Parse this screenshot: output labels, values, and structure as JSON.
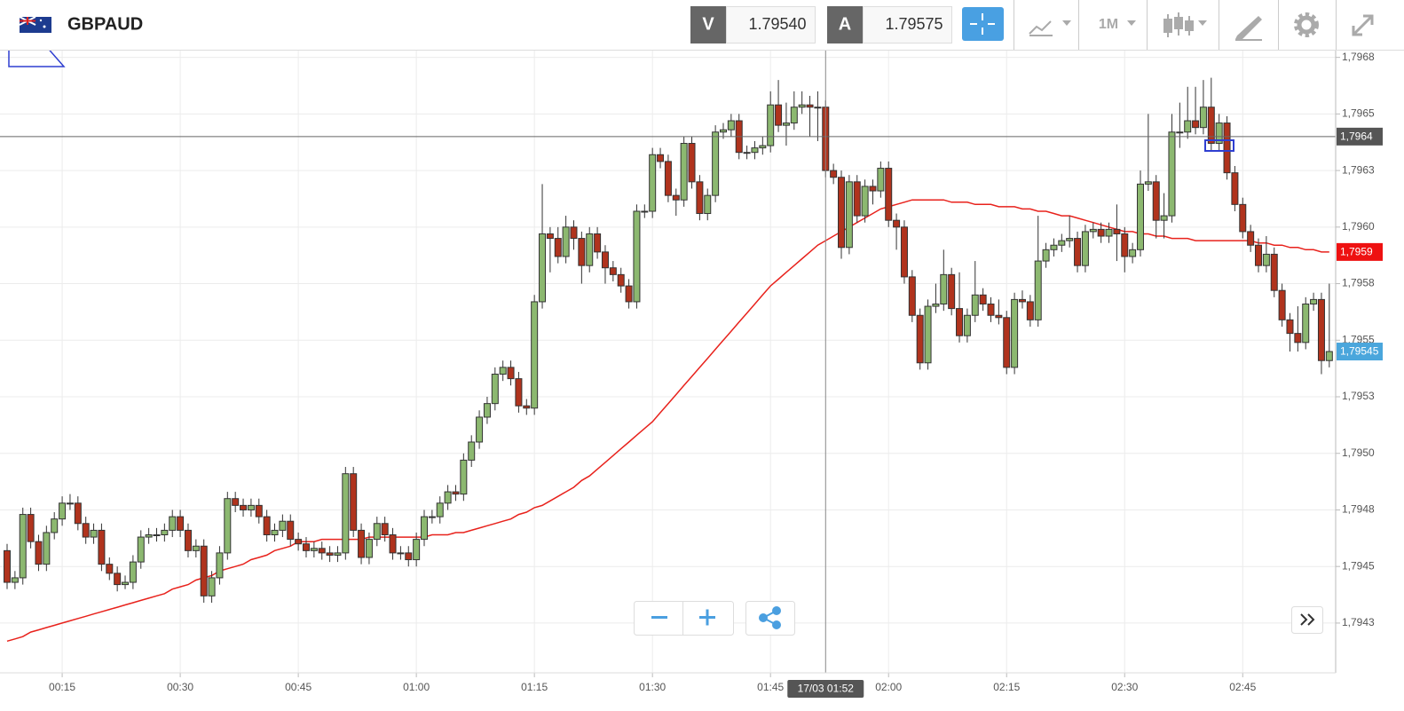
{
  "toolbar": {
    "symbol": "GBPAUD",
    "sell_label": "V",
    "sell": "1.79540",
    "buy_label": "A",
    "buy": "1.79575",
    "timeframe": "1M"
  },
  "chart_data": {
    "type": "candlestick",
    "up_color": "#8cb870",
    "down_color": "#b0331d",
    "grid": true,
    "ylim": [
      1.79403,
      1.79678
    ],
    "yticks": [
      {
        "value": 1.79675,
        "label": "1,7968"
      },
      {
        "value": 1.7965,
        "label": "1,7965"
      },
      {
        "value": 1.79625,
        "label": "1,7963"
      },
      {
        "value": 1.796,
        "label": "1,7960"
      },
      {
        "value": 1.79575,
        "label": "1,7958"
      },
      {
        "value": 1.7955,
        "label": "1,7955"
      },
      {
        "value": 1.79525,
        "label": "1,7953"
      },
      {
        "value": 1.795,
        "label": "1,7950"
      },
      {
        "value": 1.79475,
        "label": "1,7948"
      },
      {
        "value": 1.7945,
        "label": "1,7945"
      },
      {
        "value": 1.79425,
        "label": "1,7943"
      }
    ],
    "xticks": [
      "00:15",
      "00:30",
      "00:45",
      "01:00",
      "01:15",
      "01:30",
      "01:45",
      "02:00",
      "02:15",
      "02:30",
      "02:45"
    ],
    "x": [
      "00:08",
      "00:09",
      "00:10",
      "00:11",
      "00:12",
      "00:13",
      "00:14",
      "00:15",
      "00:16",
      "00:17",
      "00:18",
      "00:19",
      "00:20",
      "00:21",
      "00:22",
      "00:23",
      "00:24",
      "00:25",
      "00:26",
      "00:27",
      "00:28",
      "00:29",
      "00:30",
      "00:31",
      "00:32",
      "00:33",
      "00:34",
      "00:35",
      "00:36",
      "00:37",
      "00:38",
      "00:39",
      "00:40",
      "00:41",
      "00:42",
      "00:43",
      "00:44",
      "00:45",
      "00:46",
      "00:47",
      "00:48",
      "00:49",
      "00:50",
      "00:51",
      "00:52",
      "00:53",
      "00:54",
      "00:55",
      "00:56",
      "00:57",
      "00:58",
      "00:59",
      "01:00",
      "01:01",
      "01:02",
      "01:03",
      "01:04",
      "01:05",
      "01:06",
      "01:07",
      "01:08",
      "01:09",
      "01:10",
      "01:11",
      "01:12",
      "01:13",
      "01:14",
      "01:15",
      "01:16",
      "01:17",
      "01:18",
      "01:19",
      "01:20",
      "01:21",
      "01:22",
      "01:23",
      "01:24",
      "01:25",
      "01:26",
      "01:27",
      "01:28",
      "01:29",
      "01:30",
      "01:31",
      "01:32",
      "01:33",
      "01:34",
      "01:35",
      "01:36",
      "01:37",
      "01:38",
      "01:39",
      "01:40",
      "01:41",
      "01:42",
      "01:43",
      "01:44",
      "01:45",
      "01:46",
      "01:47",
      "01:48",
      "01:49",
      "01:50",
      "01:51",
      "01:52",
      "01:53",
      "01:54",
      "01:55",
      "01:56",
      "01:57",
      "01:58",
      "01:59",
      "02:00",
      "02:01",
      "02:02",
      "02:03",
      "02:04",
      "02:05",
      "02:06",
      "02:07",
      "02:08",
      "02:09",
      "02:10",
      "02:11",
      "02:12",
      "02:13",
      "02:14",
      "02:15",
      "02:16",
      "02:17",
      "02:18",
      "02:19",
      "02:20",
      "02:21",
      "02:22",
      "02:23",
      "02:24",
      "02:25",
      "02:26",
      "02:27",
      "02:28",
      "02:29",
      "02:30",
      "02:31",
      "02:32",
      "02:33",
      "02:34",
      "02:35",
      "02:36",
      "02:37",
      "02:38",
      "02:39",
      "02:40",
      "02:41",
      "02:42",
      "02:43",
      "02:44",
      "02:45",
      "02:46",
      "02:47",
      "02:48",
      "02:49",
      "02:50",
      "02:51",
      "02:52",
      "02:53",
      "02:54",
      "02:55",
      "02:56"
    ],
    "open": [
      1.79457,
      1.79443,
      1.79445,
      1.79473,
      1.79461,
      1.79451,
      1.79465,
      1.79471,
      1.79478,
      1.79478,
      1.79469,
      1.79463,
      1.79466,
      1.79451,
      1.79447,
      1.79442,
      1.79443,
      1.79452,
      1.79463,
      1.79464,
      1.79464,
      1.79466,
      1.79472,
      1.79466,
      1.79457,
      1.79459,
      1.79437,
      1.79445,
      1.79456,
      1.7948,
      1.79477,
      1.79475,
      1.79477,
      1.79472,
      1.79464,
      1.79466,
      1.7947,
      1.79462,
      1.7946,
      1.79457,
      1.79458,
      1.79456,
      1.79455,
      1.79456,
      1.79491,
      1.79466,
      1.79454,
      1.79462,
      1.79469,
      1.79464,
      1.79456,
      1.79456,
      1.79453,
      1.79462,
      1.79472,
      1.79472,
      1.79478,
      1.79483,
      1.79482,
      1.79497,
      1.79505,
      1.79516,
      1.79522,
      1.79535,
      1.79538,
      1.79533,
      1.79521,
      1.7952,
      1.79567,
      1.79597,
      1.79595,
      1.79587,
      1.796,
      1.79595,
      1.79583,
      1.79597,
      1.79589,
      1.79582,
      1.79579,
      1.79574,
      1.79567,
      1.79607,
      1.79607,
      1.79632,
      1.79629,
      1.79614,
      1.79612,
      1.79637,
      1.7962,
      1.79606,
      1.79614,
      1.79642,
      1.79643,
      1.79647,
      1.79633,
      1.79633,
      1.79635,
      1.79636,
      1.79654,
      1.79645,
      1.79646,
      1.79653,
      1.79654,
      1.79653,
      1.79653,
      1.79625,
      1.79622,
      1.79591,
      1.7962,
      1.79605,
      1.79618,
      1.79616,
      1.79626,
      1.79603,
      1.796,
      1.79578,
      1.79561,
      1.7954,
      1.79565,
      1.79566,
      1.79579,
      1.79564,
      1.79552,
      1.79561,
      1.7957,
      1.79566,
      1.79561,
      1.7956,
      1.79538,
      1.79568,
      1.79567,
      1.79559,
      1.79585,
      1.7959,
      1.79592,
      1.79594,
      1.79595,
      1.79583,
      1.79598,
      1.79599,
      1.79596,
      1.79599,
      1.79597,
      1.79587,
      1.7959,
      1.79619,
      1.7962,
      1.79603,
      1.79605,
      1.79642,
      1.79642,
      1.79647,
      1.79644,
      1.79653,
      1.79637,
      1.79646,
      1.79624,
      1.7961,
      1.79598,
      1.79592,
      1.79583,
      1.79588,
      1.79572,
      1.79559,
      1.79553,
      1.79549,
      1.79566,
      1.79568,
      1.79541
    ],
    "high": [
      1.7946,
      1.79448,
      1.79476,
      1.79476,
      1.79464,
      1.79468,
      1.79474,
      1.79481,
      1.79482,
      1.79481,
      1.79472,
      1.79469,
      1.79469,
      1.79454,
      1.7945,
      1.79446,
      1.79455,
      1.79466,
      1.79467,
      1.79467,
      1.79469,
      1.79475,
      1.79475,
      1.79469,
      1.79462,
      1.79462,
      1.79448,
      1.79459,
      1.79483,
      1.79483,
      1.7948,
      1.7948,
      1.7948,
      1.79475,
      1.79469,
      1.79473,
      1.79473,
      1.79465,
      1.79463,
      1.79461,
      1.79461,
      1.79459,
      1.79459,
      1.79494,
      1.79494,
      1.79469,
      1.79465,
      1.79472,
      1.79472,
      1.79467,
      1.79459,
      1.79459,
      1.79465,
      1.79475,
      1.79475,
      1.79481,
      1.79486,
      1.79486,
      1.795,
      1.79508,
      1.79519,
      1.79525,
      1.79538,
      1.79541,
      1.79541,
      1.79536,
      1.79524,
      1.7957,
      1.79619,
      1.796,
      1.796,
      1.79605,
      1.79603,
      1.79598,
      1.796,
      1.796,
      1.79592,
      1.79585,
      1.79582,
      1.79577,
      1.7961,
      1.7961,
      1.79635,
      1.79635,
      1.79632,
      1.79617,
      1.7964,
      1.7964,
      1.79623,
      1.79617,
      1.79645,
      1.79646,
      1.7965,
      1.7965,
      1.79636,
      1.79638,
      1.7964,
      1.7966,
      1.79665,
      1.79655,
      1.7966,
      1.7966,
      1.79658,
      1.7966,
      1.79656,
      1.79628,
      1.79625,
      1.79623,
      1.79623,
      1.79621,
      1.79621,
      1.79629,
      1.79629,
      1.79606,
      1.79603,
      1.79581,
      1.79564,
      1.79568,
      1.79575,
      1.7959,
      1.79582,
      1.7958,
      1.79564,
      1.79585,
      1.79573,
      1.79569,
      1.79568,
      1.79563,
      1.79571,
      1.79572,
      1.7957,
      1.79605,
      1.79593,
      1.79595,
      1.79597,
      1.79605,
      1.79598,
      1.79601,
      1.79602,
      1.79602,
      1.79602,
      1.7961,
      1.796,
      1.79593,
      1.79625,
      1.7965,
      1.79623,
      1.79615,
      1.7965,
      1.79655,
      1.79662,
      1.79662,
      1.79665,
      1.79666,
      1.7965,
      1.79649,
      1.79627,
      1.79613,
      1.79601,
      1.79595,
      1.79596,
      1.79591,
      1.79575,
      1.79562,
      1.79565,
      1.79569,
      1.79571,
      1.79571,
      1.79575
    ],
    "low": [
      1.7944,
      1.7944,
      1.79442,
      1.79458,
      1.79448,
      1.79448,
      1.79462,
      1.79468,
      1.79475,
      1.79466,
      1.7946,
      1.7946,
      1.79448,
      1.79444,
      1.79439,
      1.7944,
      1.7944,
      1.79449,
      1.7946,
      1.79461,
      1.79461,
      1.79463,
      1.79463,
      1.79454,
      1.79454,
      1.79434,
      1.79434,
      1.79442,
      1.79453,
      1.79474,
      1.79472,
      1.79472,
      1.79469,
      1.79461,
      1.79461,
      1.79463,
      1.79459,
      1.79457,
      1.79454,
      1.79454,
      1.79453,
      1.79452,
      1.79452,
      1.79453,
      1.79463,
      1.79451,
      1.79451,
      1.79459,
      1.79461,
      1.79453,
      1.79453,
      1.7945,
      1.7945,
      1.79459,
      1.79469,
      1.79469,
      1.79475,
      1.79479,
      1.79479,
      1.79494,
      1.79502,
      1.79513,
      1.79519,
      1.79532,
      1.7953,
      1.79518,
      1.79517,
      1.79517,
      1.79564,
      1.7958,
      1.79584,
      1.79584,
      1.7959,
      1.79575,
      1.7958,
      1.79586,
      1.79575,
      1.79576,
      1.79571,
      1.79564,
      1.79564,
      1.79604,
      1.79604,
      1.79626,
      1.79611,
      1.79605,
      1.79609,
      1.79617,
      1.79603,
      1.79603,
      1.79611,
      1.79639,
      1.7964,
      1.7963,
      1.7963,
      1.7963,
      1.79632,
      1.79633,
      1.79642,
      1.79636,
      1.79643,
      1.7965,
      1.7964,
      1.79638,
      1.79622,
      1.79619,
      1.79586,
      1.79588,
      1.79602,
      1.79602,
      1.7961,
      1.79613,
      1.796,
      1.7959,
      1.79575,
      1.79558,
      1.79537,
      1.79537,
      1.79562,
      1.79563,
      1.79561,
      1.79549,
      1.79549,
      1.79558,
      1.79563,
      1.79558,
      1.79557,
      1.79535,
      1.79535,
      1.79564,
      1.79556,
      1.79556,
      1.79582,
      1.79587,
      1.79589,
      1.79591,
      1.7958,
      1.7958,
      1.79595,
      1.79593,
      1.79593,
      1.79585,
      1.7958,
      1.79584,
      1.79587,
      1.79616,
      1.79595,
      1.79595,
      1.79602,
      1.79635,
      1.79639,
      1.79641,
      1.79641,
      1.79634,
      1.79634,
      1.79621,
      1.79607,
      1.79595,
      1.79589,
      1.7958,
      1.7958,
      1.79569,
      1.79556,
      1.79545,
      1.79545,
      1.79546,
      1.79563,
      1.79535,
      1.79538
    ],
    "close": [
      1.79443,
      1.79445,
      1.79473,
      1.79461,
      1.79451,
      1.79465,
      1.79471,
      1.79478,
      1.79478,
      1.79469,
      1.79463,
      1.79466,
      1.79451,
      1.79447,
      1.79442,
      1.79443,
      1.79452,
      1.79463,
      1.79464,
      1.79464,
      1.79466,
      1.79472,
      1.79466,
      1.79457,
      1.79459,
      1.79437,
      1.79445,
      1.79456,
      1.7948,
      1.79477,
      1.79475,
      1.79477,
      1.79472,
      1.79464,
      1.79466,
      1.7947,
      1.79462,
      1.7946,
      1.79457,
      1.79458,
      1.79456,
      1.79455,
      1.79456,
      1.79491,
      1.79466,
      1.79454,
      1.79462,
      1.79469,
      1.79464,
      1.79456,
      1.79456,
      1.79453,
      1.79462,
      1.79472,
      1.79472,
      1.79478,
      1.79483,
      1.79482,
      1.79497,
      1.79505,
      1.79516,
      1.79522,
      1.79535,
      1.79538,
      1.79533,
      1.79521,
      1.7952,
      1.79567,
      1.79597,
      1.79595,
      1.79587,
      1.796,
      1.79595,
      1.79583,
      1.79597,
      1.79589,
      1.79582,
      1.79579,
      1.79574,
      1.79567,
      1.79607,
      1.79607,
      1.79632,
      1.79629,
      1.79614,
      1.79612,
      1.79637,
      1.7962,
      1.79606,
      1.79614,
      1.79642,
      1.79643,
      1.79647,
      1.79633,
      1.79633,
      1.79635,
      1.79636,
      1.79654,
      1.79645,
      1.79646,
      1.79653,
      1.79654,
      1.79653,
      1.79653,
      1.79625,
      1.79622,
      1.79591,
      1.7962,
      1.79605,
      1.79618,
      1.79616,
      1.79626,
      1.79603,
      1.796,
      1.79578,
      1.79561,
      1.7954,
      1.79565,
      1.79566,
      1.79579,
      1.79564,
      1.79552,
      1.79561,
      1.7957,
      1.79566,
      1.79561,
      1.7956,
      1.79538,
      1.79568,
      1.79567,
      1.79559,
      1.79585,
      1.7959,
      1.79592,
      1.79594,
      1.79595,
      1.79583,
      1.79598,
      1.79599,
      1.79596,
      1.79599,
      1.79597,
      1.79587,
      1.7959,
      1.79619,
      1.7962,
      1.79603,
      1.79605,
      1.79642,
      1.79642,
      1.79647,
      1.79644,
      1.79653,
      1.79637,
      1.79646,
      1.79624,
      1.7961,
      1.79598,
      1.79592,
      1.79583,
      1.79588,
      1.79572,
      1.79559,
      1.79553,
      1.79549,
      1.79566,
      1.79568,
      1.79541,
      1.79545
    ],
    "last_label": "1,79545",
    "overlays": [
      {
        "type": "line",
        "color": "#e8221c",
        "last_label": "1,7959",
        "values": [
          1.79417,
          1.79418,
          1.79419,
          1.79421,
          1.79422,
          1.79423,
          1.79424,
          1.79425,
          1.79426,
          1.79427,
          1.79428,
          1.79429,
          1.7943,
          1.79431,
          1.79432,
          1.79433,
          1.79434,
          1.79435,
          1.79436,
          1.79437,
          1.79438,
          1.7944,
          1.79441,
          1.79442,
          1.79444,
          1.79445,
          1.79446,
          1.79448,
          1.79449,
          1.7945,
          1.79451,
          1.79453,
          1.79454,
          1.79455,
          1.79457,
          1.79458,
          1.79459,
          1.79461,
          1.79461,
          1.79461,
          1.79462,
          1.79462,
          1.79462,
          1.79462,
          1.79462,
          1.79462,
          1.79463,
          1.79463,
          1.79463,
          1.79463,
          1.79463,
          1.79463,
          1.79463,
          1.79463,
          1.79464,
          1.79464,
          1.79464,
          1.79465,
          1.79465,
          1.79466,
          1.79467,
          1.79468,
          1.79469,
          1.7947,
          1.79471,
          1.79473,
          1.79474,
          1.79476,
          1.79477,
          1.79479,
          1.79481,
          1.79483,
          1.79485,
          1.79488,
          1.7949,
          1.79493,
          1.79496,
          1.79499,
          1.79502,
          1.79505,
          1.79508,
          1.79511,
          1.79514,
          1.79518,
          1.79522,
          1.79526,
          1.7953,
          1.79534,
          1.79538,
          1.79542,
          1.79546,
          1.7955,
          1.79554,
          1.79558,
          1.79562,
          1.79566,
          1.7957,
          1.79574,
          1.79577,
          1.7958,
          1.79583,
          1.79586,
          1.79589,
          1.79592,
          1.79594,
          1.79596,
          1.79598,
          1.796,
          1.79602,
          1.79604,
          1.79606,
          1.79608,
          1.79609,
          1.7961,
          1.79611,
          1.79612,
          1.79612,
          1.79612,
          1.79612,
          1.79612,
          1.79611,
          1.79611,
          1.79611,
          1.7961,
          1.7961,
          1.7961,
          1.79609,
          1.79609,
          1.79609,
          1.79608,
          1.79608,
          1.79607,
          1.79607,
          1.79606,
          1.79605,
          1.79605,
          1.79604,
          1.79603,
          1.79602,
          1.79601,
          1.796,
          1.79599,
          1.79598,
          1.79598,
          1.79597,
          1.79597,
          1.79596,
          1.79596,
          1.79595,
          1.79595,
          1.79595,
          1.79594,
          1.79594,
          1.79594,
          1.79594,
          1.79594,
          1.79594,
          1.79594,
          1.79594,
          1.79593,
          1.79593,
          1.79592,
          1.79592,
          1.79591,
          1.79591,
          1.7959,
          1.7959,
          1.79589,
          1.79589
        ]
      }
    ],
    "crosshair": {
      "y": 1.7964,
      "y_label": "1,7964",
      "x_label": "17/03 01:52"
    }
  }
}
